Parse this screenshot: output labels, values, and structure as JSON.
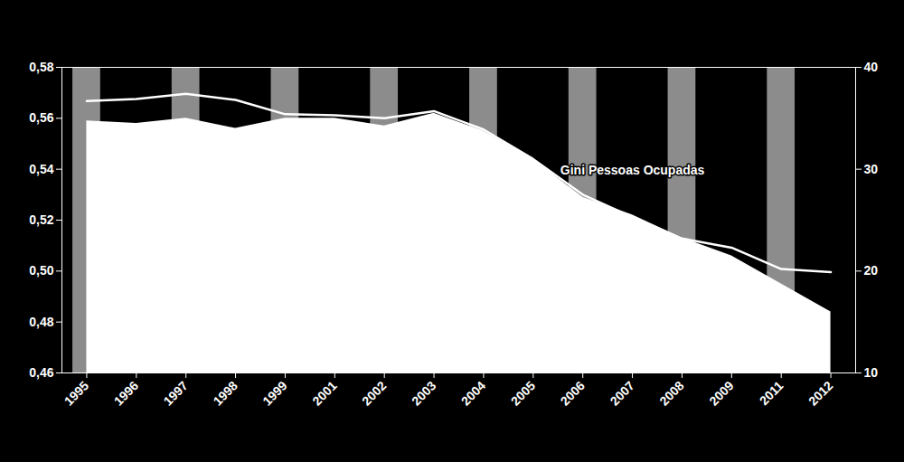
{
  "chart_data": {
    "type": "line",
    "categories": [
      "1995",
      "1996",
      "1997",
      "1998",
      "1999",
      "2001",
      "2002",
      "2003",
      "2004",
      "2005",
      "2006",
      "2007",
      "2008",
      "2009",
      "2011",
      "2012"
    ],
    "series": [
      {
        "name": "Gini Pessoas Ocupadas",
        "type": "area",
        "color": "#ffffff",
        "values": [
          0.559,
          0.558,
          0.56,
          0.556,
          0.56,
          0.56,
          0.557,
          0.562,
          0.555,
          0.544,
          0.529,
          0.522,
          0.513,
          0.506,
          0.495,
          0.484
        ]
      },
      {
        "type": "line",
        "axis": "y2",
        "color": "#ffffff",
        "values": [
          36.7,
          36.9,
          37.4,
          36.8,
          35.4,
          35.3,
          35.0,
          35.7,
          33.9,
          31.0,
          27.5,
          25.3,
          23.2,
          22.3,
          20.2,
          19.9
        ]
      }
    ],
    "ylim": [
      0.46,
      0.58
    ],
    "yticks": [
      {
        "value": 0.46,
        "label": "0,46"
      },
      {
        "value": 0.48,
        "label": "0,48"
      },
      {
        "value": 0.5,
        "label": "0,50"
      },
      {
        "value": 0.52,
        "label": "0,52"
      },
      {
        "value": 0.54,
        "label": "0,54"
      },
      {
        "value": 0.56,
        "label": "0,56"
      },
      {
        "value": 0.58,
        "label": "0,58"
      }
    ],
    "y2lim": [
      10,
      40
    ],
    "y2ticks": [
      10,
      20,
      30,
      40
    ]
  }
}
